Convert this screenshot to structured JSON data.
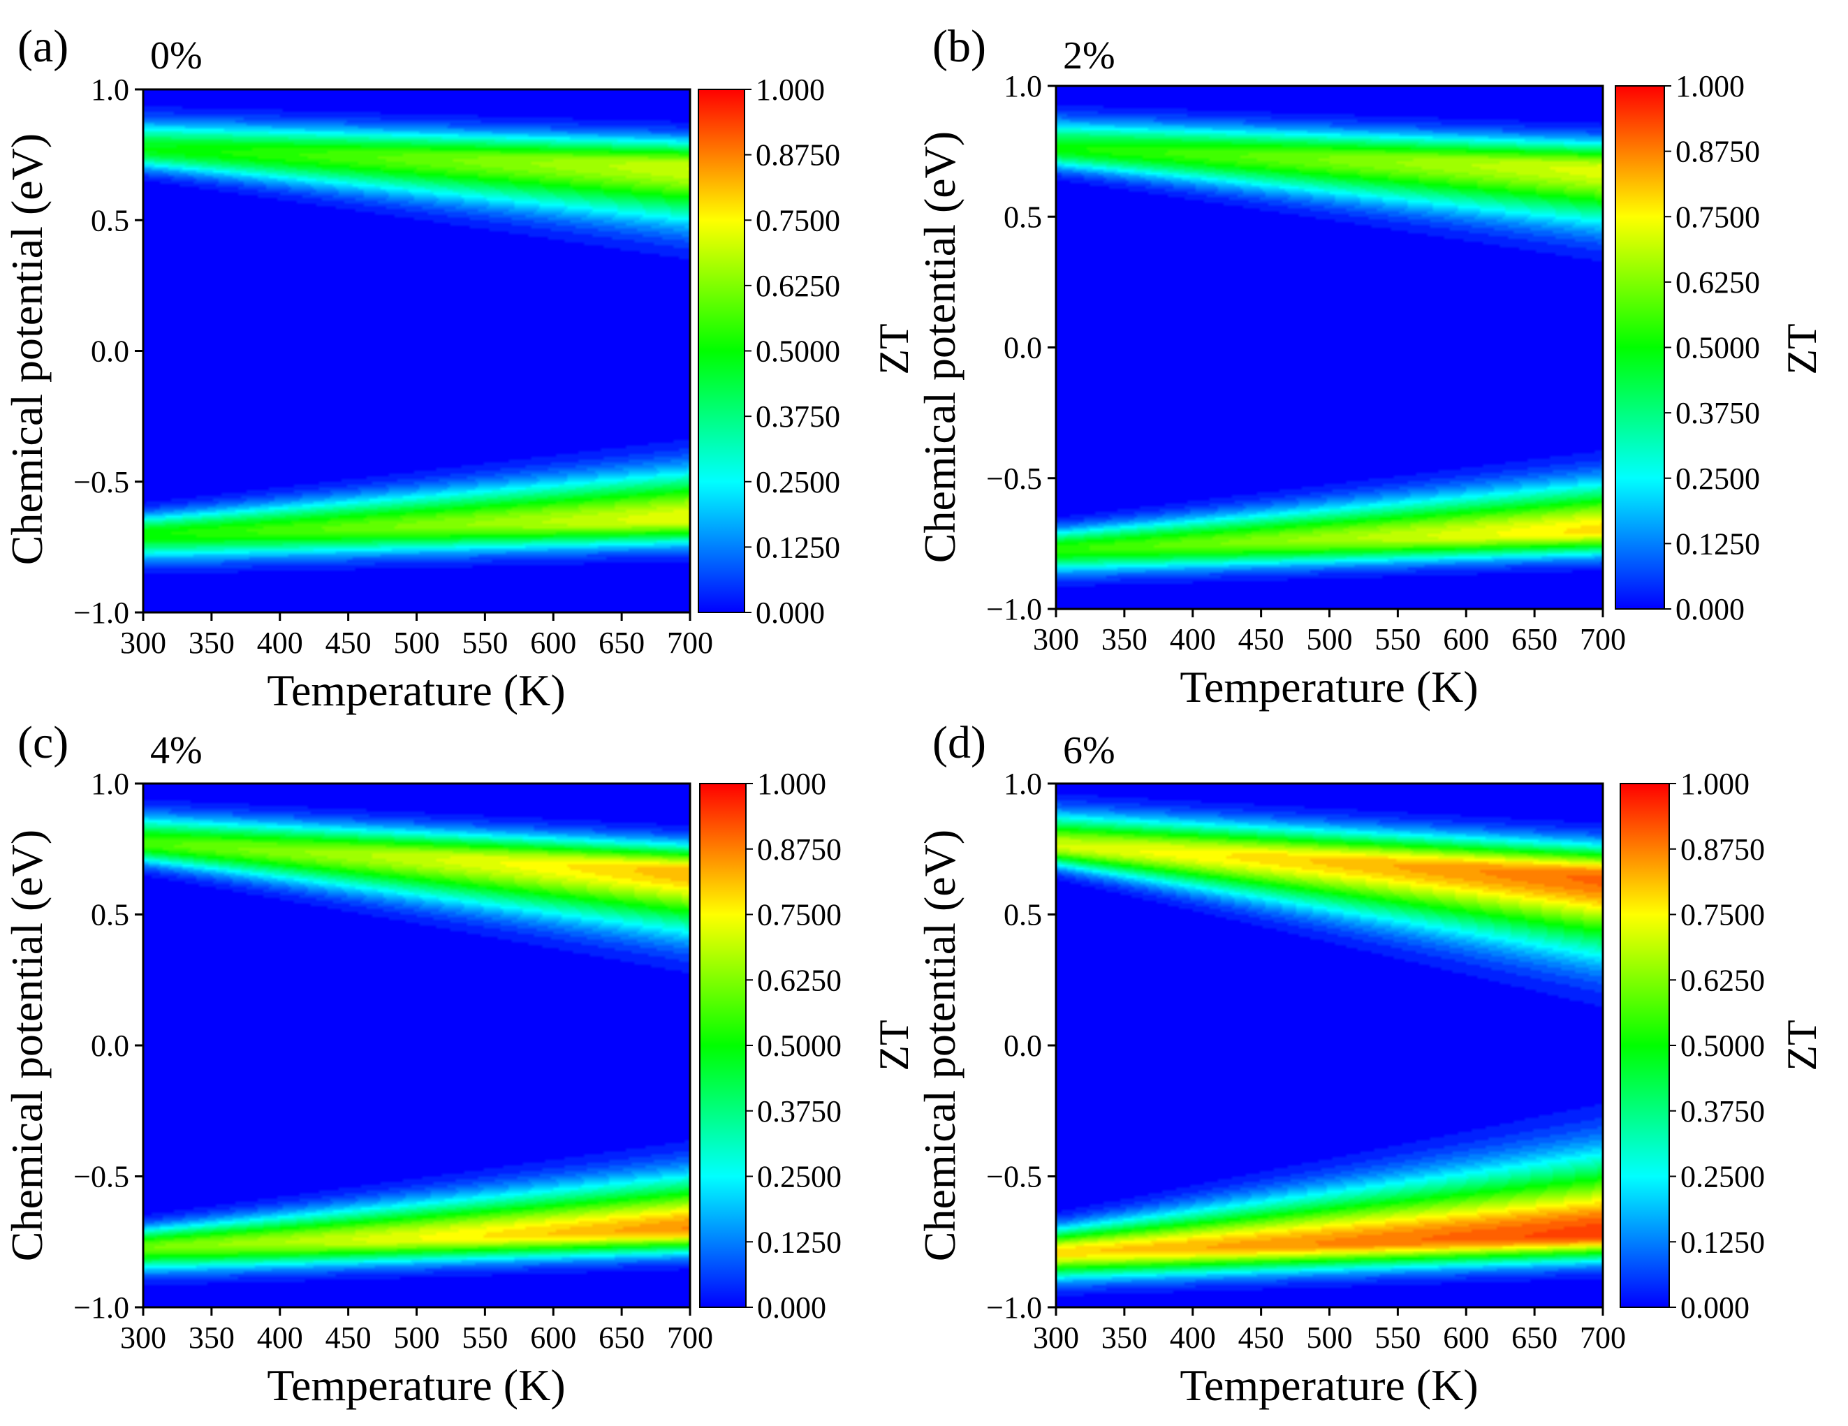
{
  "figure": {
    "colorbar_colors": [
      "#0000ff",
      "#00ffff",
      "#00ff00",
      "#ffff00",
      "#ff0000"
    ],
    "zlim": [
      0,
      1
    ]
  },
  "chart_data": [
    {
      "type": "heatmap",
      "panel_label": "(a)",
      "strain": "0%",
      "xlabel": "Temperature (K)",
      "ylabel": "Chemical potential (eV)",
      "zlabel": "ZT",
      "xlim": [
        300,
        700
      ],
      "ylim": [
        -1.0,
        1.0
      ],
      "x_ticks": [
        "300",
        "350",
        "400",
        "450",
        "500",
        "550",
        "600",
        "650",
        "700"
      ],
      "y_ticks": [
        "−1.0",
        "−0.5",
        "0.0",
        "0.5",
        "1.0"
      ],
      "colorbar_ticks": [
        "0.000",
        "0.1250",
        "0.2500",
        "0.3750",
        "0.5000",
        "0.6250",
        "0.7500",
        "0.8750",
        "1.000"
      ],
      "bands": [
        {
          "center_start": 0.77,
          "center_end": 0.7,
          "lower_sigma_start": 0.05,
          "lower_sigma_end": 0.14,
          "upper_sigma": 0.07,
          "peak_start": 0.5,
          "peak_end": 0.72
        },
        {
          "center_start": -0.7,
          "center_end": -0.64,
          "lower_sigma": 0.065,
          "upper_sigma_start": 0.05,
          "upper_sigma_end": 0.12,
          "peak_start": 0.52,
          "peak_end": 0.75
        }
      ]
    },
    {
      "type": "heatmap",
      "panel_label": "(b)",
      "strain": "2%",
      "xlabel": "Temperature (K)",
      "ylabel": "Chemical potential (eV)",
      "zlabel": "ZT",
      "xlim": [
        300,
        700
      ],
      "ylim": [
        -1.0,
        1.0
      ],
      "x_ticks": [
        "300",
        "350",
        "400",
        "450",
        "500",
        "550",
        "600",
        "650",
        "700"
      ],
      "y_ticks": [
        "−1.0",
        "−0.5",
        "0.0",
        "0.5",
        "1.0"
      ],
      "colorbar_ticks": [
        "0.000",
        "0.1250",
        "0.2500",
        "0.3750",
        "0.5000",
        "0.6250",
        "0.7500",
        "0.8750",
        "1.000"
      ],
      "bands": [
        {
          "center_start": 0.76,
          "center_end": 0.68,
          "lower_sigma_start": 0.05,
          "lower_sigma_end": 0.14,
          "upper_sigma": 0.07,
          "peak_start": 0.52,
          "peak_end": 0.74
        },
        {
          "center_start": -0.77,
          "center_end": -0.7,
          "lower_sigma": 0.06,
          "upper_sigma_start": 0.05,
          "upper_sigma_end": 0.12,
          "peak_start": 0.55,
          "peak_end": 0.8
        }
      ]
    },
    {
      "type": "heatmap",
      "panel_label": "(c)",
      "strain": "4%",
      "xlabel": "Temperature (K)",
      "ylabel": "Chemical potential (eV)",
      "zlabel": "ZT",
      "xlim": [
        300,
        700
      ],
      "ylim": [
        -1.0,
        1.0
      ],
      "x_ticks": [
        "300",
        "350",
        "400",
        "450",
        "500",
        "550",
        "600",
        "650",
        "700"
      ],
      "y_ticks": [
        "−1.0",
        "−0.5",
        "0.0",
        "0.5",
        "1.0"
      ],
      "colorbar_ticks": [
        "0.000",
        "0.1250",
        "0.2500",
        "0.3750",
        "0.5000",
        "0.6250",
        "0.7500",
        "0.8750",
        "1.000"
      ],
      "bands": [
        {
          "center_start": 0.77,
          "center_end": 0.66,
          "lower_sigma_start": 0.05,
          "lower_sigma_end": 0.15,
          "upper_sigma": 0.07,
          "peak_start": 0.58,
          "peak_end": 0.84
        },
        {
          "center_start": -0.77,
          "center_end": -0.7,
          "lower_sigma": 0.06,
          "upper_sigma_start": 0.05,
          "upper_sigma_end": 0.13,
          "peak_start": 0.62,
          "peak_end": 0.88
        }
      ]
    },
    {
      "type": "heatmap",
      "panel_label": "(d)",
      "strain": "6%",
      "xlabel": "Temperature (K)",
      "ylabel": "Chemical potential (eV)",
      "zlabel": "ZT",
      "xlim": [
        300,
        700
      ],
      "ylim": [
        -1.0,
        1.0
      ],
      "x_ticks": [
        "300",
        "350",
        "400",
        "450",
        "500",
        "550",
        "600",
        "650",
        "700"
      ],
      "y_ticks": [
        "−1.0",
        "−0.5",
        "0.0",
        "0.5",
        "1.0"
      ],
      "colorbar_ticks": [
        "0.000",
        "0.1250",
        "0.2500",
        "0.3750",
        "0.5000",
        "0.6250",
        "0.7500",
        "0.8750",
        "1.000"
      ],
      "bands": [
        {
          "center_start": 0.76,
          "center_end": 0.64,
          "lower_sigma_start": 0.05,
          "lower_sigma_end": 0.19,
          "upper_sigma": 0.08,
          "peak_start": 0.72,
          "peak_end": 0.92
        },
        {
          "center_start": -0.79,
          "center_end": -0.72,
          "lower_sigma": 0.065,
          "upper_sigma_start": 0.06,
          "upper_sigma_end": 0.19,
          "peak_start": 0.8,
          "peak_end": 0.96
        }
      ]
    }
  ]
}
